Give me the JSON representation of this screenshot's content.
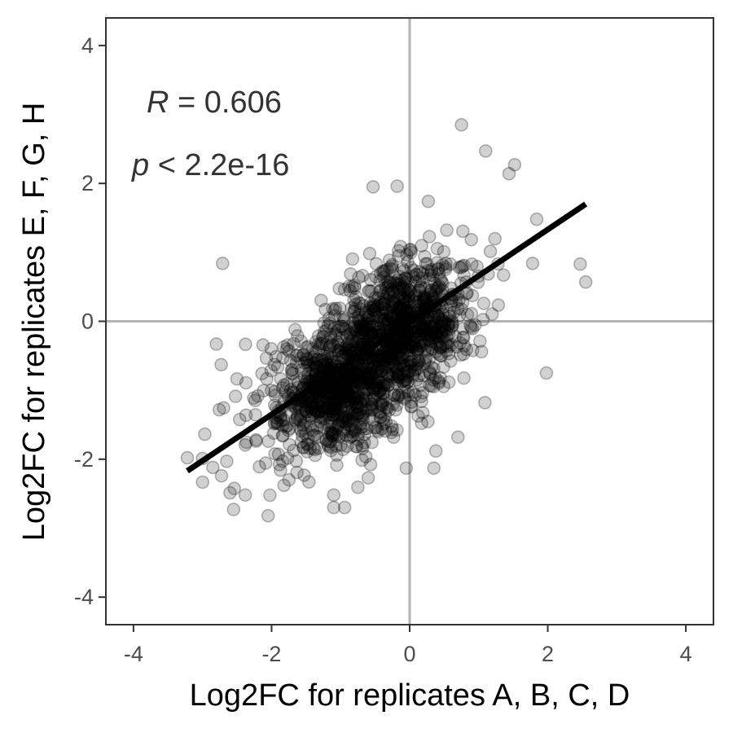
{
  "chart_data": {
    "type": "scatter",
    "xlabel": "Log2FC for replicates A, B, C, D",
    "ylabel": "Log2FC for replicates E, F, G, H",
    "xlim": [
      -4.4,
      4.4
    ],
    "ylim": [
      -4.4,
      4.4
    ],
    "x_ticks": [
      -4,
      -2,
      0,
      2,
      4
    ],
    "y_ticks": [
      -4,
      -2,
      0,
      2,
      4
    ],
    "x_tick_labels": [
      "-4",
      "-2",
      "0",
      "2",
      "4"
    ],
    "y_tick_labels": [
      "-4",
      "-2",
      "0",
      "2",
      "4"
    ],
    "reference_lines": {
      "x": 0,
      "y": 0,
      "color": "#b3b3b3"
    },
    "grid": false,
    "annotations": {
      "r_symbol": "R",
      "r_text": " = 0.606",
      "p_symbol": "p",
      "p_text": " < 2.2e-16"
    },
    "regression": {
      "x": [
        -3.22,
        2.55
      ],
      "y": [
        -2.17,
        1.7
      ],
      "color": "#000000"
    },
    "point_style": {
      "fill": "#000000",
      "fill_opacity": 0.18,
      "stroke": "#000000",
      "stroke_opacity": 0.28
    },
    "notable_points": [
      {
        "x": 0.75,
        "y": 2.85
      },
      {
        "x": 1.1,
        "y": 2.47
      },
      {
        "x": 1.52,
        "y": 2.27
      },
      {
        "x": 1.44,
        "y": 2.14
      },
      {
        "x": -0.53,
        "y": 1.95
      },
      {
        "x": -0.18,
        "y": 1.96
      },
      {
        "x": 0.27,
        "y": 1.74
      },
      {
        "x": 1.84,
        "y": 1.48
      },
      {
        "x": 2.47,
        "y": 0.83
      },
      {
        "x": 2.55,
        "y": 0.57
      },
      {
        "x": 1.78,
        "y": 0.84
      },
      {
        "x": -2.71,
        "y": 0.84
      },
      {
        "x": -2.8,
        "y": -0.33
      },
      {
        "x": -2.73,
        "y": -0.63
      },
      {
        "x": 1.98,
        "y": -0.75
      },
      {
        "x": 1.09,
        "y": -1.18
      },
      {
        "x": -3.22,
        "y": -1.98
      },
      {
        "x": -2.65,
        "y": -2.03
      },
      {
        "x": -2.55,
        "y": -2.73
      },
      {
        "x": -2.05,
        "y": -2.82
      },
      {
        "x": -2.38,
        "y": -2.52
      },
      {
        "x": -1.1,
        "y": -2.7
      },
      {
        "x": -1.1,
        "y": -2.52
      },
      {
        "x": -0.05,
        "y": -2.13
      },
      {
        "x": 0.35,
        "y": -2.13
      },
      {
        "x": -0.6,
        "y": -2.27
      },
      {
        "x": 0.38,
        "y": -1.88
      },
      {
        "x": 0.7,
        "y": -1.68
      }
    ]
  }
}
